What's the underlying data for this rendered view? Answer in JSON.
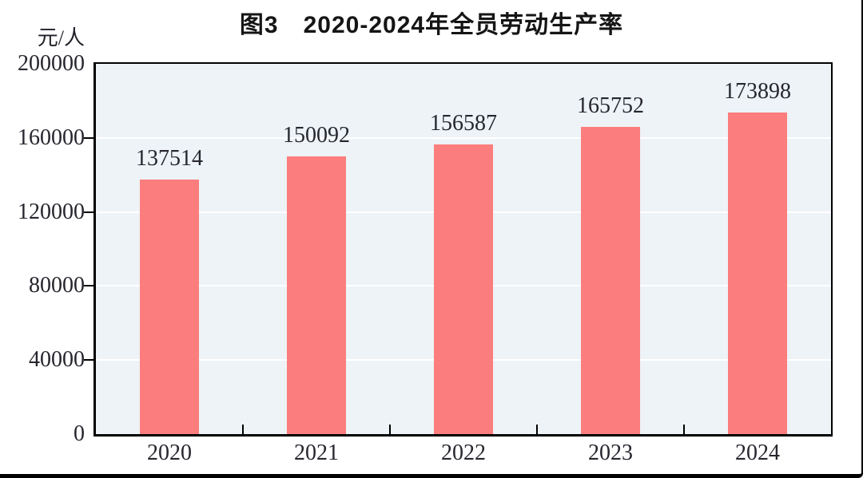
{
  "chart_data": {
    "type": "bar",
    "title": "图3　2020-2024年全员劳动生产率",
    "ylabel": "元/人",
    "xlabel": "",
    "categories": [
      "2020",
      "2021",
      "2022",
      "2023",
      "2024"
    ],
    "values": [
      137514,
      150092,
      156587,
      165752,
      173898
    ],
    "data_labels": [
      "137514",
      "150092",
      "156587",
      "165752",
      "173898"
    ],
    "ylim": [
      0,
      200000
    ],
    "yticks": [
      0,
      40000,
      80000,
      120000,
      160000,
      200000
    ],
    "ytick_labels": [
      "0",
      "40000",
      "80000",
      "120000",
      "160000",
      "200000"
    ],
    "grid": true,
    "legend_position": "none",
    "bar_color": "#fc7d7d",
    "plot_bg_color": "#edf3f7",
    "grid_color": "#ffffff",
    "axis_color": "#000000",
    "label_color": "#26262e"
  }
}
